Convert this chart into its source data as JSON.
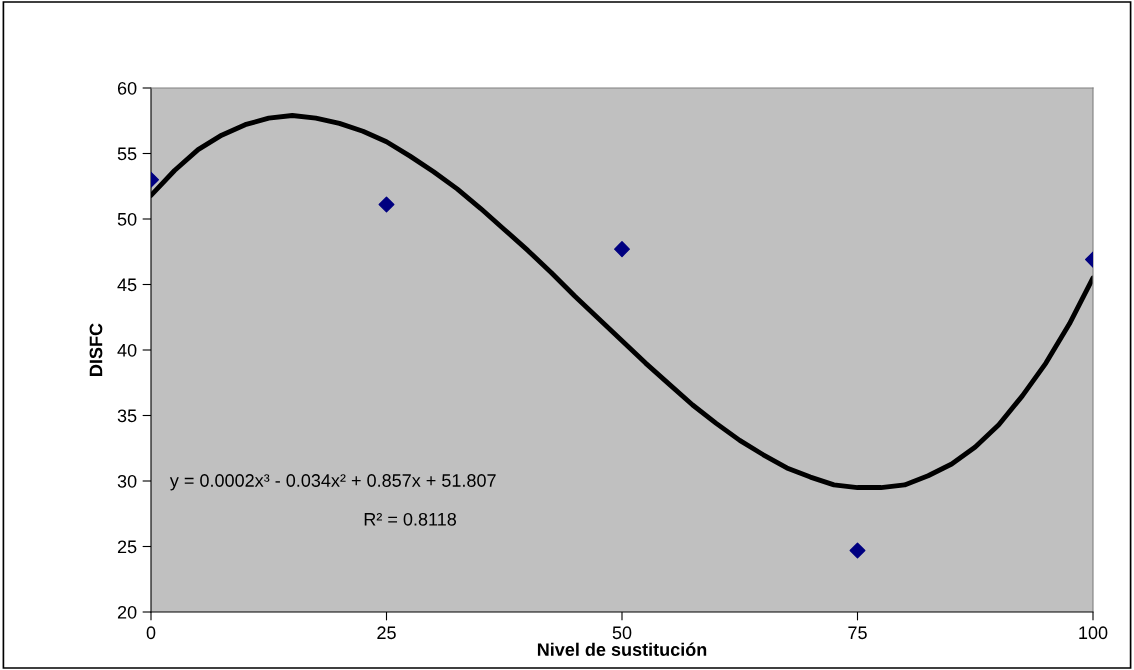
{
  "chart_data": {
    "type": "scatter",
    "xlabel": "Nivel de sustitución",
    "ylabel": "DISFC",
    "series": [
      {
        "color": "#000080",
        "marker": "diamond",
        "x": [
          0,
          25,
          50,
          75,
          100
        ],
        "values": [
          53.0,
          51.1,
          47.7,
          24.7,
          46.9
        ]
      },
      {
        "type": "line",
        "color": "#000000",
        "marker": "none",
        "line_style": "solid",
        "x": [
          0,
          2.5,
          5,
          7.5,
          10,
          12.5,
          15,
          17.5,
          20,
          22.5,
          25,
          27.5,
          30,
          32.5,
          35,
          37.5,
          40,
          42.5,
          45,
          47.5,
          50,
          52.5,
          55,
          57.5,
          60,
          62.5,
          65,
          67.5,
          70,
          72.5,
          75,
          77.5,
          80,
          82.5,
          85,
          87.5,
          90,
          92.5,
          95,
          97.5,
          100
        ],
        "values": [
          51.8,
          53.7,
          55.3,
          56.4,
          57.2,
          57.7,
          57.9,
          57.7,
          57.3,
          56.7,
          55.9,
          54.8,
          53.6,
          52.3,
          50.8,
          49.2,
          47.6,
          45.9,
          44.1,
          42.4,
          40.7,
          39.0,
          37.4,
          35.8,
          34.4,
          33.1,
          32.0,
          31.0,
          30.3,
          29.7,
          29.5,
          29.5,
          29.7,
          30.4,
          31.3,
          32.6,
          34.3,
          36.5,
          39.0,
          42.0,
          45.5
        ]
      }
    ],
    "xlim": [
      0,
      100
    ],
    "xticks": [
      0,
      25,
      50,
      75,
      100
    ],
    "ylim": [
      20,
      60
    ],
    "yticks": [
      20,
      25,
      30,
      35,
      40,
      45,
      50,
      55,
      60
    ],
    "grid": false,
    "legend": false,
    "annotations": [
      "y = 0.0002x³ - 0.034x² + 0.857x + 51.807",
      "R² = 0.8118"
    ]
  }
}
